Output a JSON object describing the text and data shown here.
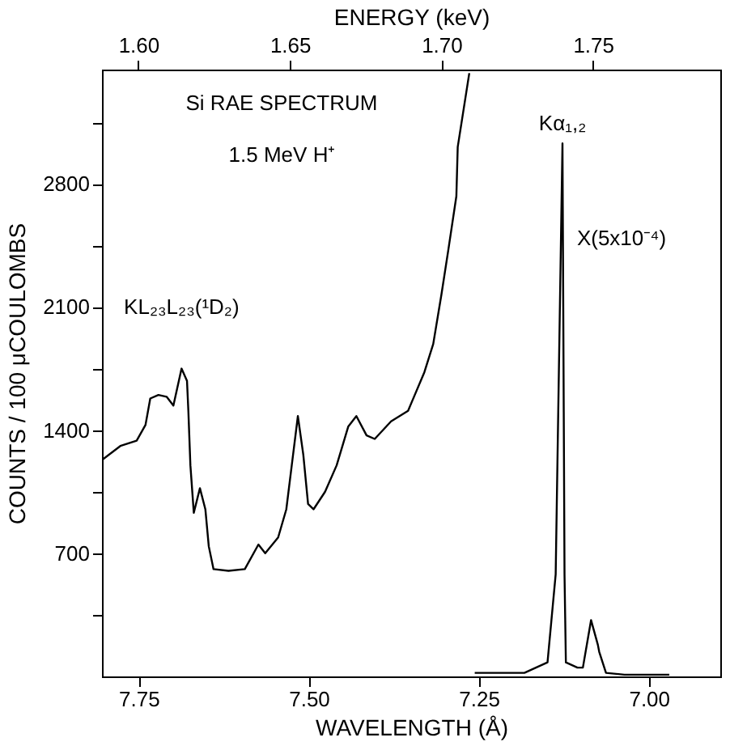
{
  "chart_data": {
    "type": "line",
    "xlabel": "WAVELENGTH (Å)",
    "ylabel": "COUNTS / 100 μCOULOMBS",
    "x2label": "ENERGY (keV)",
    "xlim": [
      7.804,
      6.895
    ],
    "xticks": [
      7.75,
      {
        "value": 7.5,
        "label": "7.50"
      },
      7.25,
      {
        "value": 7.0,
        "label": "7.00"
      }
    ],
    "x2lim": [
      1.588,
      1.792
    ],
    "x2ticks": [
      {
        "value": 1.6,
        "label": "1.60"
      },
      1.65,
      {
        "value": 1.7,
        "label": "1.70"
      },
      1.75
    ],
    "ylim": [
      0,
      3450
    ],
    "yticks": [
      {
        "value": 350,
        "label": null
      },
      700,
      {
        "value": 1050,
        "label": null
      },
      1400,
      {
        "value": 1750,
        "label": null
      },
      2100,
      {
        "value": 2450,
        "label": null
      },
      2800,
      {
        "value": 3150,
        "label": null
      }
    ],
    "grid": false,
    "series": [
      {
        "color": "#000000",
        "x": [
          7.804,
          7.777,
          7.753,
          7.74,
          7.733,
          7.721,
          7.709,
          7.699,
          7.687,
          7.679,
          7.677,
          7.674,
          7.669,
          7.66,
          7.652,
          7.647,
          7.64,
          7.618,
          7.594,
          7.574,
          7.564,
          7.545,
          7.533,
          7.525,
          7.516,
          7.508,
          7.501,
          7.493,
          7.476,
          7.459,
          7.442,
          7.43,
          7.415,
          7.403,
          7.379,
          7.354,
          7.33,
          7.317,
          7.305,
          7.295,
          7.283,
          7.281,
          7.264
        ],
        "values": [
          1230,
          1310,
          1340,
          1430,
          1580,
          1600,
          1590,
          1540,
          1750,
          1680,
          1510,
          1200,
          930,
          1070,
          950,
          740,
          610,
          600,
          610,
          750,
          700,
          790,
          950,
          1200,
          1480,
          1260,
          980,
          950,
          1050,
          1200,
          1420,
          1480,
          1370,
          1350,
          1450,
          1510,
          1730,
          1890,
          2170,
          2420,
          2730,
          3010,
          3430
        ]
      },
      {
        "color": "#000000",
        "x": [
          7.256,
          7.183,
          7.149,
          7.137,
          7.127,
          7.124,
          7.122,
          7.105,
          7.097,
          7.085,
          7.075,
          7.073,
          7.063,
          7.036,
          6.97
        ],
        "values": [
          20,
          20,
          80,
          580,
          3030,
          580,
          80,
          50,
          50,
          320,
          180,
          140,
          20,
          10,
          10
        ]
      }
    ],
    "annotations": [
      "Si RAE SPECTRUM",
      "1.5 MeV H⁺",
      {
        "text": "KL₂₃L₂₃(¹D₂)",
        "x": 7.687,
        "y": 1750
      },
      {
        "text": "Kα₁,₂",
        "x": 7.127,
        "y": 3030
      },
      {
        "text": "X(5x10⁻⁴)",
        "x": 7.12,
        "y": 2490
      }
    ]
  }
}
